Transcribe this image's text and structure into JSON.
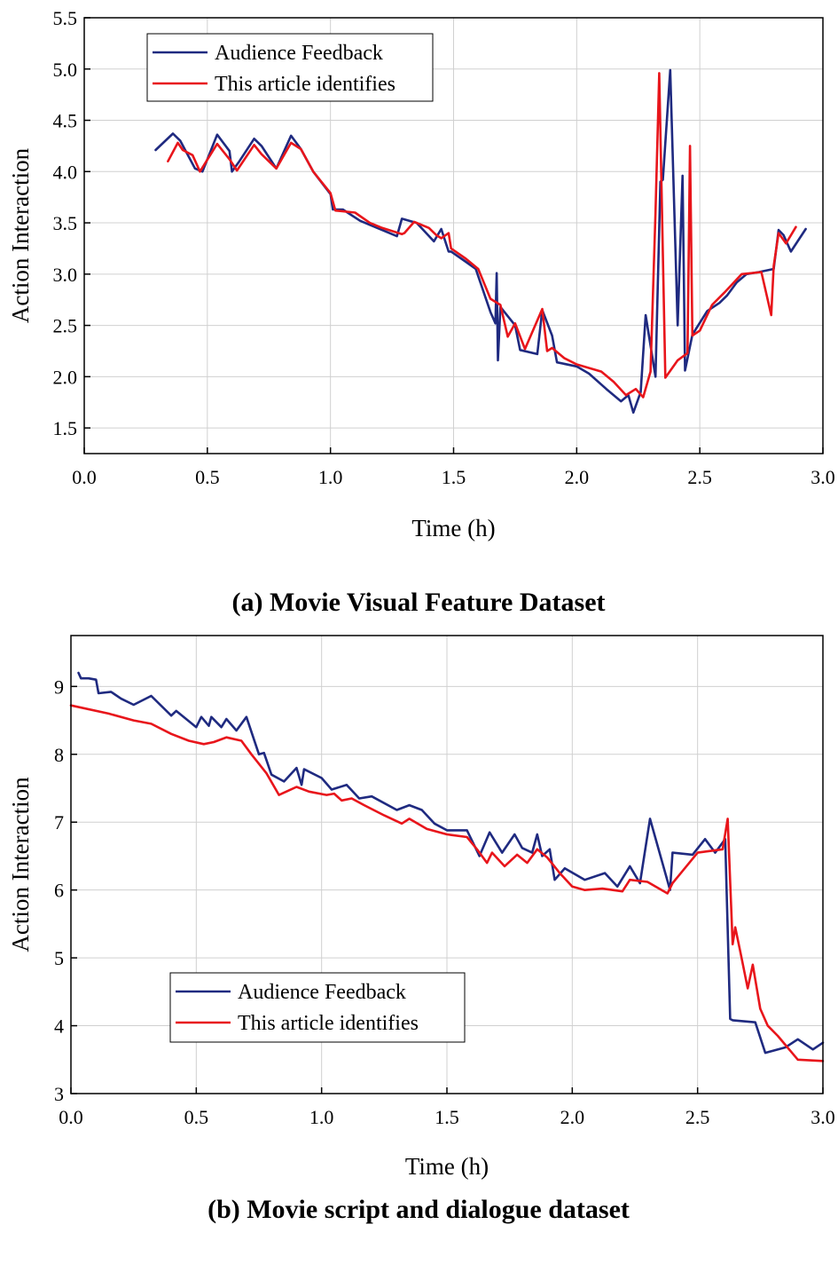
{
  "chart_data": [
    {
      "type": "line",
      "caption": "(a) Movie Visual Feature Dataset",
      "xlabel": "Time (h)",
      "ylabel": "Action Interaction",
      "xlim": [
        0.0,
        3.0
      ],
      "ylim": [
        1.25,
        5.5
      ],
      "xticks": [
        "0.0",
        "0.5",
        "1.0",
        "1.5",
        "2.0",
        "2.5",
        "3.0"
      ],
      "yticks": [
        "1.5",
        "2.0",
        "2.5",
        "3.0",
        "3.5",
        "4.0",
        "4.5",
        "5.0",
        "5.5"
      ],
      "grid": true,
      "legend": "top-left",
      "series": [
        {
          "name": "Audience Feedback",
          "color": "#1f2a80",
          "x": [
            0.29,
            0.36,
            0.39,
            0.45,
            0.48,
            0.54,
            0.59,
            0.6,
            0.63,
            0.69,
            0.72,
            0.78,
            0.84,
            0.88,
            0.93,
            1.0,
            1.01,
            1.05,
            1.12,
            1.27,
            1.29,
            1.35,
            1.42,
            1.45,
            1.48,
            1.49,
            1.55,
            1.59,
            1.65,
            1.67,
            1.675,
            1.68,
            1.69,
            1.75,
            1.77,
            1.84,
            1.86,
            1.9,
            1.92,
            2.0,
            2.05,
            2.12,
            2.18,
            2.21,
            2.23,
            2.26,
            2.28,
            2.32,
            2.34,
            2.35,
            2.38,
            2.41,
            2.43,
            2.44,
            2.47,
            2.53,
            2.58,
            2.61,
            2.65,
            2.69,
            2.74,
            2.8,
            2.82,
            2.84,
            2.87,
            2.93
          ],
          "y": [
            4.21,
            4.37,
            4.3,
            4.03,
            4.0,
            4.36,
            4.2,
            4.0,
            4.1,
            4.32,
            4.25,
            4.03,
            4.35,
            4.22,
            4.0,
            3.78,
            3.63,
            3.63,
            3.52,
            3.37,
            3.54,
            3.5,
            3.32,
            3.44,
            3.22,
            3.22,
            3.12,
            3.05,
            2.63,
            2.52,
            3.01,
            2.16,
            2.68,
            2.5,
            2.26,
            2.22,
            2.65,
            2.4,
            2.14,
            2.1,
            2.03,
            1.88,
            1.76,
            1.82,
            1.65,
            1.85,
            2.6,
            2.0,
            3.9,
            3.92,
            4.99,
            2.5,
            3.96,
            2.06,
            2.41,
            2.64,
            2.72,
            2.79,
            2.92,
            3.0,
            3.02,
            3.05,
            3.43,
            3.38,
            3.22,
            3.44
          ]
        },
        {
          "name": "This article identifies",
          "color": "#e8151b",
          "x": [
            0.34,
            0.38,
            0.4,
            0.44,
            0.47,
            0.54,
            0.59,
            0.62,
            0.69,
            0.72,
            0.78,
            0.84,
            0.88,
            0.93,
            1.0,
            1.02,
            1.1,
            1.16,
            1.21,
            1.29,
            1.3,
            1.34,
            1.4,
            1.43,
            1.45,
            1.48,
            1.49,
            1.55,
            1.6,
            1.65,
            1.69,
            1.72,
            1.75,
            1.79,
            1.86,
            1.88,
            1.9,
            1.95,
            2.0,
            2.1,
            2.15,
            2.2,
            2.24,
            2.27,
            2.3,
            2.32,
            2.335,
            2.36,
            2.41,
            2.45,
            2.46,
            2.47,
            2.5,
            2.55,
            2.6,
            2.67,
            2.75,
            2.79,
            2.8,
            2.82,
            2.85,
            2.89
          ],
          "y": [
            4.1,
            4.28,
            4.21,
            4.16,
            4.0,
            4.27,
            4.12,
            4.01,
            4.26,
            4.17,
            4.03,
            4.28,
            4.22,
            4.0,
            3.79,
            3.62,
            3.6,
            3.5,
            3.45,
            3.39,
            3.4,
            3.51,
            3.45,
            3.38,
            3.35,
            3.4,
            3.25,
            3.15,
            3.05,
            2.76,
            2.7,
            2.39,
            2.52,
            2.27,
            2.66,
            2.25,
            2.28,
            2.18,
            2.12,
            2.05,
            1.95,
            1.82,
            1.88,
            1.8,
            2.05,
            3.6,
            4.96,
            1.99,
            2.16,
            2.23,
            4.25,
            2.4,
            2.45,
            2.7,
            2.82,
            3.0,
            3.02,
            2.6,
            3.08,
            3.4,
            3.3,
            3.46
          ]
        }
      ]
    },
    {
      "type": "line",
      "caption": "(b) Movie script and dialogue dataset",
      "xlabel": "Time (h)",
      "ylabel": "Action Interaction",
      "xlim": [
        0.0,
        3.0
      ],
      "ylim": [
        3.0,
        9.75
      ],
      "xticks": [
        "0.0",
        "0.5",
        "1.0",
        "1.5",
        "2.0",
        "2.5",
        "3.0"
      ],
      "yticks": [
        "3",
        "4",
        "5",
        "6",
        "7",
        "8",
        "9"
      ],
      "grid": true,
      "legend": "bottom-left",
      "series": [
        {
          "name": "Audience Feedback",
          "color": "#1f2a80",
          "x": [
            0.03,
            0.04,
            0.07,
            0.1,
            0.11,
            0.16,
            0.2,
            0.25,
            0.32,
            0.4,
            0.42,
            0.5,
            0.52,
            0.55,
            0.56,
            0.6,
            0.62,
            0.66,
            0.7,
            0.75,
            0.77,
            0.8,
            0.85,
            0.9,
            0.92,
            0.93,
            1.0,
            1.04,
            1.1,
            1.15,
            1.2,
            1.3,
            1.35,
            1.4,
            1.42,
            1.45,
            1.5,
            1.58,
            1.63,
            1.67,
            1.72,
            1.77,
            1.8,
            1.84,
            1.86,
            1.88,
            1.91,
            1.93,
            1.97,
            2.05,
            2.13,
            2.18,
            2.23,
            2.27,
            2.31,
            2.39,
            2.4,
            2.48,
            2.53,
            2.57,
            2.61,
            2.63,
            2.64,
            2.73,
            2.77,
            2.85,
            2.9,
            2.96,
            3.0
          ],
          "y": [
            9.2,
            9.12,
            9.12,
            9.1,
            8.9,
            8.92,
            8.82,
            8.73,
            8.86,
            8.57,
            8.64,
            8.4,
            8.55,
            8.42,
            8.55,
            8.4,
            8.52,
            8.35,
            8.55,
            8.0,
            8.02,
            7.7,
            7.6,
            7.8,
            7.55,
            7.78,
            7.65,
            7.48,
            7.55,
            7.35,
            7.38,
            7.18,
            7.25,
            7.18,
            7.1,
            6.98,
            6.88,
            6.88,
            6.5,
            6.85,
            6.55,
            6.82,
            6.62,
            6.55,
            6.82,
            6.5,
            6.6,
            6.15,
            6.32,
            6.15,
            6.25,
            6.05,
            6.35,
            6.1,
            7.05,
            6.0,
            6.55,
            6.52,
            6.75,
            6.55,
            6.75,
            4.1,
            4.08,
            4.05,
            3.6,
            3.68,
            3.8,
            3.65,
            3.75
          ]
        },
        {
          "name": "This article identifies",
          "color": "#e8151b",
          "x": [
            0.0,
            0.15,
            0.25,
            0.32,
            0.4,
            0.47,
            0.53,
            0.57,
            0.62,
            0.68,
            0.72,
            0.78,
            0.83,
            0.9,
            0.95,
            1.02,
            1.05,
            1.08,
            1.12,
            1.17,
            1.25,
            1.32,
            1.35,
            1.42,
            1.5,
            1.58,
            1.62,
            1.66,
            1.68,
            1.73,
            1.78,
            1.82,
            1.86,
            1.9,
            1.95,
            2.0,
            2.05,
            2.12,
            2.2,
            2.23,
            2.3,
            2.38,
            2.4,
            2.5,
            2.6,
            2.62,
            2.64,
            2.65,
            2.67,
            2.7,
            2.72,
            2.75,
            2.78,
            2.82,
            2.9,
            3.0
          ],
          "y": [
            8.72,
            8.6,
            8.5,
            8.45,
            8.3,
            8.2,
            8.15,
            8.18,
            8.25,
            8.2,
            8.0,
            7.72,
            7.4,
            7.52,
            7.45,
            7.4,
            7.42,
            7.32,
            7.35,
            7.25,
            7.1,
            6.98,
            7.05,
            6.9,
            6.82,
            6.78,
            6.6,
            6.4,
            6.55,
            6.35,
            6.52,
            6.4,
            6.6,
            6.48,
            6.25,
            6.05,
            6.0,
            6.02,
            5.98,
            6.15,
            6.12,
            5.95,
            6.1,
            6.55,
            6.6,
            7.05,
            5.2,
            5.45,
            5.1,
            4.55,
            4.9,
            4.25,
            4.0,
            3.85,
            3.5,
            3.48
          ]
        }
      ]
    }
  ]
}
